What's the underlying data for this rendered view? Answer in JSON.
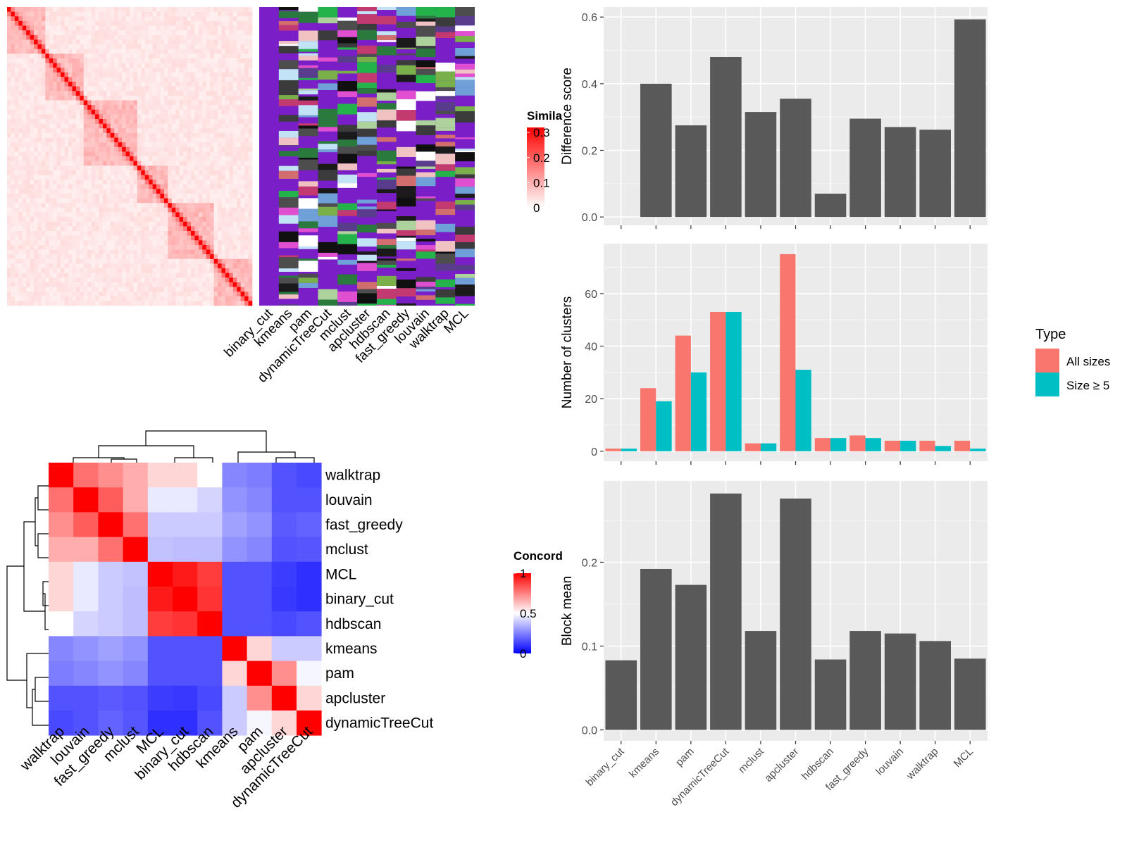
{
  "similarity_heatmap": {
    "legend_title": "Simila",
    "legend_ticks": [
      "0.3",
      "0.2",
      "0.1",
      "0"
    ],
    "methods": [
      "binary_cut",
      "kmeans",
      "pam",
      "dynamicTreeCut",
      "mclust",
      "apcluster",
      "hdbscan",
      "fast_greedy",
      "louvain",
      "walktrap",
      "MCL"
    ]
  },
  "concordance_heatmap": {
    "legend_title": "Concord",
    "legend_ticks": [
      "1",
      "0.5",
      "0"
    ],
    "row_labels": [
      "walktrap",
      "louvain",
      "fast_greedy",
      "mclust",
      "MCL",
      "binary_cut",
      "hdbscan",
      "kmeans",
      "pam",
      "apcluster",
      "dynamicTreeCut"
    ],
    "col_labels": [
      "walktrap",
      "louvain",
      "fast_greedy",
      "mclust",
      "MCL",
      "binary_cut",
      "hdbscan",
      "kmeans",
      "pam",
      "apcluster",
      "dynamicTreeCut"
    ],
    "matrix": [
      [
        1.0,
        0.78,
        0.72,
        0.66,
        0.58,
        0.58,
        0.5,
        0.22,
        0.2,
        0.1,
        0.08
      ],
      [
        0.78,
        1.0,
        0.82,
        0.66,
        0.45,
        0.45,
        0.4,
        0.25,
        0.22,
        0.1,
        0.1
      ],
      [
        0.72,
        0.82,
        1.0,
        0.78,
        0.38,
        0.38,
        0.38,
        0.28,
        0.25,
        0.12,
        0.14
      ],
      [
        0.66,
        0.66,
        0.78,
        1.0,
        0.36,
        0.35,
        0.35,
        0.25,
        0.22,
        0.1,
        0.11
      ],
      [
        0.58,
        0.45,
        0.38,
        0.36,
        1.0,
        0.95,
        0.88,
        0.1,
        0.1,
        0.05,
        0.02
      ],
      [
        0.58,
        0.45,
        0.38,
        0.35,
        0.95,
        1.0,
        0.9,
        0.1,
        0.1,
        0.04,
        0.02
      ],
      [
        0.5,
        0.4,
        0.38,
        0.35,
        0.88,
        0.9,
        1.0,
        0.1,
        0.1,
        0.08,
        0.1
      ],
      [
        0.22,
        0.25,
        0.28,
        0.25,
        0.1,
        0.1,
        0.1,
        1.0,
        0.58,
        0.38,
        0.38
      ],
      [
        0.2,
        0.22,
        0.25,
        0.22,
        0.1,
        0.1,
        0.1,
        0.58,
        1.0,
        0.72,
        0.48
      ],
      [
        0.1,
        0.1,
        0.12,
        0.1,
        0.05,
        0.04,
        0.08,
        0.38,
        0.72,
        1.0,
        0.58
      ],
      [
        0.08,
        0.1,
        0.14,
        0.11,
        0.02,
        0.02,
        0.1,
        0.38,
        0.48,
        0.58,
        1.0
      ]
    ]
  },
  "chart_data": [
    {
      "type": "bar",
      "categories": [
        "binary_cut",
        "kmeans",
        "pam",
        "dynamicTreeCut",
        "mclust",
        "apcluster",
        "hdbscan",
        "fast_greedy",
        "louvain",
        "walktrap",
        "MCL"
      ],
      "values": [
        0.0,
        0.4,
        0.275,
        0.48,
        0.315,
        0.355,
        0.07,
        0.295,
        0.27,
        0.262,
        0.593
      ],
      "xlabel": "",
      "ylabel": "Difference score",
      "ylim": [
        -0.025,
        0.63
      ],
      "yticks": [
        0.0,
        0.2,
        0.4,
        0.6
      ],
      "ytick_labels": [
        "0.0",
        "0.2",
        "0.4",
        "0.6"
      ],
      "grid": true
    },
    {
      "type": "bar",
      "categories": [
        "binary_cut",
        "kmeans",
        "pam",
        "dynamicTreeCut",
        "mclust",
        "apcluster",
        "hdbscan",
        "fast_greedy",
        "louvain",
        "walktrap",
        "MCL"
      ],
      "series": [
        {
          "name": "All sizes",
          "color": "#F8766D",
          "values": [
            1,
            24,
            44,
            53,
            3,
            75,
            5,
            6,
            4,
            4,
            4
          ]
        },
        {
          "name": "Size ≥ 5",
          "color": "#00BFC4",
          "values": [
            1,
            19,
            30,
            53,
            3,
            31,
            5,
            5,
            4,
            2,
            1
          ]
        }
      ],
      "xlabel": "",
      "ylabel": "Number of clusters",
      "ylim": [
        -3.8,
        79
      ],
      "yticks": [
        0,
        20,
        40,
        60
      ],
      "ytick_labels": [
        "0",
        "20",
        "40",
        "60"
      ],
      "legend_title": "Type",
      "legend_position": "right",
      "grid": true
    },
    {
      "type": "bar",
      "categories": [
        "binary_cut",
        "kmeans",
        "pam",
        "dynamicTreeCut",
        "mclust",
        "apcluster",
        "hdbscan",
        "fast_greedy",
        "louvain",
        "walktrap",
        "MCL"
      ],
      "values": [
        0.083,
        0.192,
        0.173,
        0.282,
        0.118,
        0.276,
        0.084,
        0.118,
        0.115,
        0.106,
        0.085
      ],
      "xlabel": "",
      "ylabel": "Block mean",
      "ylim": [
        -0.013,
        0.297
      ],
      "yticks": [
        0.0,
        0.1,
        0.2
      ],
      "ytick_labels": [
        "0.0",
        "0.1",
        "0.2"
      ],
      "grid": true
    }
  ]
}
